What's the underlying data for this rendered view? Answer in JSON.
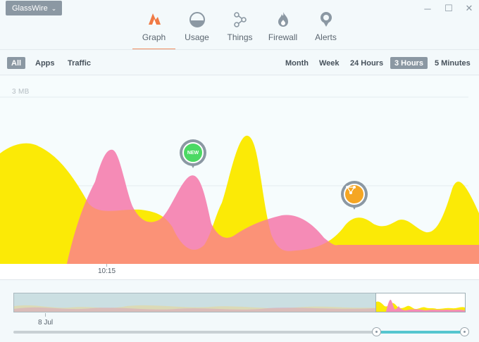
{
  "app": {
    "name": "GlassWire"
  },
  "window_controls": {
    "minimize": "─",
    "maximize": "☐",
    "close": "✕"
  },
  "nav": [
    {
      "label": "Graph",
      "icon": "graph-icon",
      "active": true
    },
    {
      "label": "Usage",
      "icon": "usage-icon"
    },
    {
      "label": "Things",
      "icon": "things-icon"
    },
    {
      "label": "Firewall",
      "icon": "firewall-icon"
    },
    {
      "label": "Alerts",
      "icon": "alerts-icon"
    }
  ],
  "filters": {
    "views": [
      "All",
      "Apps",
      "Traffic"
    ],
    "selected_view": "All",
    "ranges": [
      "Month",
      "Week",
      "24 Hours",
      "3 Hours",
      "5 Minutes"
    ],
    "selected_range": "3 Hours"
  },
  "graph": {
    "y_max_label": "3 MB",
    "time_label": "10:15",
    "markers": [
      {
        "label": "NEW",
        "color": "#4cd964"
      },
      {
        "icon": "network-node-icon",
        "color": "#f5a623"
      }
    ],
    "colors": {
      "incoming": "#fbea06",
      "outgoing": "#f58bb6",
      "overlap": "#fb9277"
    }
  },
  "overview": {
    "date_label": "8 Jul",
    "track_color": "#55c6cf"
  }
}
